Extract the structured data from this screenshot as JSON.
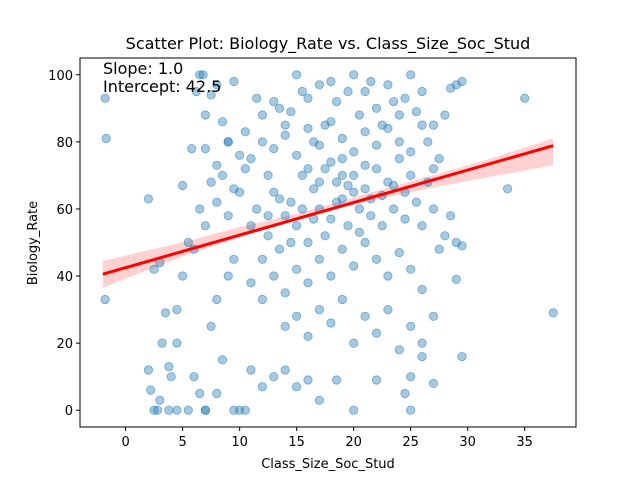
{
  "chart_data": {
    "type": "scatter",
    "title": "Scatter Plot: Biology_Rate vs. Class_Size_Soc_Stud",
    "xlabel": "Class_Size_Soc_Stud",
    "ylabel": "Biology_Rate",
    "xlim": [
      -4,
      39.5
    ],
    "ylim": [
      -5,
      105
    ],
    "xticks": [
      0,
      5,
      10,
      15,
      20,
      25,
      30,
      35
    ],
    "yticks": [
      0,
      20,
      40,
      60,
      80,
      100
    ],
    "grid": false,
    "point_color": "#1f77b4",
    "line_color": "#ff0000",
    "band_color": "#ff9999",
    "annotations": [
      "Slope: 1.0",
      "Intercept: 42.5"
    ],
    "regression": {
      "slope": 0.97,
      "intercept": 42.5,
      "x_range": [
        -2,
        37.5
      ]
    },
    "ci_band": [
      [
        -2,
        36.5,
        44.5
      ],
      [
        5,
        45.9,
        50.1
      ],
      [
        10,
        51.4,
        54.6
      ],
      [
        15,
        57.0,
        58.6
      ],
      [
        18,
        59.6,
        61.4
      ],
      [
        22,
        62.8,
        65.4
      ],
      [
        27,
        66.4,
        70.0
      ],
      [
        32,
        69.6,
        75.0
      ],
      [
        37.5,
        73.0,
        81.0
      ]
    ],
    "series": [
      {
        "values": [
          [
            -1.8,
            93
          ],
          [
            -1.7,
            81
          ],
          [
            -1.8,
            33
          ],
          [
            2.0,
            63
          ],
          [
            3.0,
            44
          ],
          [
            2.5,
            42
          ],
          [
            2,
            12
          ],
          [
            2.2,
            6
          ],
          [
            2.5,
            0
          ],
          [
            2.8,
            0
          ],
          [
            3.5,
            29
          ],
          [
            3.2,
            20
          ],
          [
            3.8,
            13
          ],
          [
            3.0,
            3
          ],
          [
            4.0,
            10
          ],
          [
            4.5,
            20
          ],
          [
            4.5,
            30
          ],
          [
            5.0,
            40
          ],
          [
            5.0,
            67
          ],
          [
            5.5,
            50
          ],
          [
            5.8,
            78
          ],
          [
            6.2,
            95
          ],
          [
            6.5,
            100
          ],
          [
            6.8,
            100
          ],
          [
            7.0,
            88
          ],
          [
            7.5,
            94
          ],
          [
            8.0,
            97
          ],
          [
            8.5,
            86
          ],
          [
            9.0,
            80
          ],
          [
            9.5,
            98
          ],
          [
            6.0,
            10
          ],
          [
            6.5,
            5
          ],
          [
            7.0,
            0
          ],
          [
            7.5,
            25
          ],
          [
            8.0,
            33
          ],
          [
            8.5,
            15
          ],
          [
            9.0,
            40
          ],
          [
            9.5,
            45
          ],
          [
            10.0,
            0
          ],
          [
            10.5,
            83
          ],
          [
            11.0,
            75
          ],
          [
            11.5,
            93
          ],
          [
            12.0,
            88
          ],
          [
            12.5,
            70
          ],
          [
            13.0,
            92
          ],
          [
            13.5,
            90
          ],
          [
            14.0,
            85
          ],
          [
            14.5,
            89
          ],
          [
            15.0,
            100
          ],
          [
            15.5,
            95
          ],
          [
            16.0,
            93
          ],
          [
            16.5,
            80
          ],
          [
            17.0,
            97
          ],
          [
            17.5,
            85
          ],
          [
            18.0,
            98
          ],
          [
            18.5,
            92
          ],
          [
            19.0,
            75
          ],
          [
            19.5,
            95
          ],
          [
            20.0,
            100
          ],
          [
            20.5,
            88
          ],
          [
            21.0,
            95
          ],
          [
            21.5,
            98
          ],
          [
            22.0,
            90
          ],
          [
            22.5,
            85
          ],
          [
            23.0,
            97
          ],
          [
            23.5,
            92
          ],
          [
            24.0,
            88
          ],
          [
            24.5,
            93
          ],
          [
            25.0,
            100
          ],
          [
            25.5,
            89
          ],
          [
            26.0,
            95
          ],
          [
            26.5,
            80
          ],
          [
            27.0,
            85
          ],
          [
            27.5,
            75
          ],
          [
            28.0,
            88
          ],
          [
            28.5,
            96
          ],
          [
            29.0,
            97
          ],
          [
            29.5,
            98
          ],
          [
            28.5,
            58
          ],
          [
            29.0,
            50
          ],
          [
            29.5,
            49
          ],
          [
            29.0,
            39
          ],
          [
            29.5,
            16
          ],
          [
            27.0,
            8
          ],
          [
            26.0,
            16
          ],
          [
            25.0,
            0
          ],
          [
            24.5,
            5
          ],
          [
            25.0,
            10
          ],
          [
            22.0,
            9
          ],
          [
            20.0,
            0
          ],
          [
            18.5,
            9
          ],
          [
            17.0,
            3
          ],
          [
            16.0,
            9
          ],
          [
            15.0,
            7
          ],
          [
            14.0,
            12
          ],
          [
            13.0,
            10
          ],
          [
            12.0,
            7
          ],
          [
            11.0,
            12
          ],
          [
            10.5,
            0
          ],
          [
            9.5,
            0
          ],
          [
            8.0,
            5
          ],
          [
            7.0,
            0
          ],
          [
            5.5,
            0
          ],
          [
            4.5,
            0
          ],
          [
            3.8,
            0
          ],
          [
            33.5,
            66
          ],
          [
            35.0,
            93
          ],
          [
            37.5,
            29
          ],
          [
            11,
            55
          ],
          [
            11.5,
            60
          ],
          [
            12,
            45
          ],
          [
            12.5,
            52
          ],
          [
            13,
            65
          ],
          [
            13.5,
            48
          ],
          [
            14,
            58
          ],
          [
            14.5,
            62
          ],
          [
            15,
            55
          ],
          [
            15.5,
            70
          ],
          [
            16,
            50
          ],
          [
            16.5,
            66
          ],
          [
            17,
            60
          ],
          [
            17.5,
            72
          ],
          [
            18,
            57
          ],
          [
            18.5,
            68
          ],
          [
            19,
            63
          ],
          [
            19.5,
            55
          ],
          [
            20,
            70
          ],
          [
            20.5,
            60
          ],
          [
            21,
            66
          ],
          [
            21.5,
            58
          ],
          [
            22,
            72
          ],
          [
            22.5,
            64
          ],
          [
            23,
            68
          ],
          [
            23.5,
            60
          ],
          [
            24,
            75
          ],
          [
            24.5,
            65
          ],
          [
            25,
            70
          ],
          [
            25.5,
            62
          ],
          [
            26,
            55
          ],
          [
            26.5,
            68
          ],
          [
            27,
            60
          ],
          [
            27.5,
            48
          ],
          [
            28,
            52
          ],
          [
            10,
            65
          ],
          [
            10.5,
            72
          ],
          [
            9,
            58
          ],
          [
            9.5,
            66
          ],
          [
            8,
            62
          ],
          [
            8.5,
            70
          ],
          [
            7,
            55
          ],
          [
            7.5,
            68
          ],
          [
            6,
            48
          ],
          [
            6.5,
            60
          ],
          [
            11,
            38
          ],
          [
            12,
            33
          ],
          [
            13,
            40
          ],
          [
            14,
            35
          ],
          [
            15,
            42
          ],
          [
            16,
            38
          ],
          [
            17,
            45
          ],
          [
            18,
            40
          ],
          [
            19,
            48
          ],
          [
            20,
            43
          ],
          [
            21,
            50
          ],
          [
            22,
            45
          ],
          [
            23,
            40
          ],
          [
            24,
            47
          ],
          [
            25,
            42
          ],
          [
            26,
            36
          ],
          [
            14,
            25
          ],
          [
            15,
            28
          ],
          [
            16,
            22
          ],
          [
            17,
            30
          ],
          [
            18,
            26
          ],
          [
            19,
            33
          ],
          [
            20,
            20
          ],
          [
            21,
            28
          ],
          [
            22,
            23
          ],
          [
            23,
            30
          ],
          [
            24,
            18
          ],
          [
            25,
            25
          ],
          [
            26,
            20
          ],
          [
            27,
            28
          ],
          [
            12,
            80
          ],
          [
            13,
            78
          ],
          [
            14,
            82
          ],
          [
            15,
            76
          ],
          [
            16,
            84
          ],
          [
            17,
            79
          ],
          [
            18,
            86
          ],
          [
            19,
            81
          ],
          [
            20,
            77
          ],
          [
            21,
            83
          ],
          [
            22,
            79
          ],
          [
            23,
            84
          ],
          [
            24,
            80
          ],
          [
            25,
            77
          ],
          [
            26,
            85
          ],
          [
            27,
            72
          ],
          [
            9,
            80
          ],
          [
            8,
            73
          ],
          [
            10,
            76
          ],
          [
            7,
            78
          ],
          [
            12.5,
            58
          ],
          [
            13.5,
            63
          ],
          [
            14.5,
            50
          ],
          [
            15.5,
            60
          ],
          [
            16.5,
            57
          ],
          [
            17.5,
            52
          ],
          [
            18.5,
            62
          ],
          [
            19.5,
            67
          ],
          [
            20.5,
            53
          ],
          [
            21.5,
            63
          ],
          [
            22.5,
            55
          ],
          [
            23.5,
            67
          ],
          [
            24.5,
            57
          ],
          [
            16,
            72
          ],
          [
            17,
            68
          ],
          [
            18,
            74
          ],
          [
            19,
            70
          ],
          [
            20,
            65
          ],
          [
            21,
            73
          ]
        ]
      }
    ]
  }
}
